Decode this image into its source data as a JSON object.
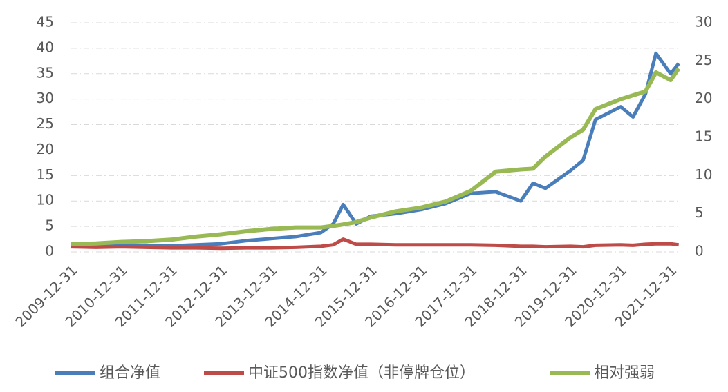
{
  "chart_data": {
    "type": "line",
    "x": [
      "2009-12-31",
      "2010-06-30",
      "2010-12-31",
      "2011-06-30",
      "2011-12-31",
      "2012-06-30",
      "2012-12-31",
      "2013-06-30",
      "2013-12-31",
      "2014-06-30",
      "2014-12-31",
      "2015-03-31",
      "2015-06-12",
      "2015-09-15",
      "2015-12-31",
      "2016-06-30",
      "2016-12-31",
      "2017-06-30",
      "2017-12-31",
      "2018-06-30",
      "2018-12-31",
      "2019-03-31",
      "2019-06-30",
      "2019-12-31",
      "2020-03-31",
      "2020-06-30",
      "2020-12-31",
      "2021-03-31",
      "2021-06-30",
      "2021-09-15",
      "2021-12-31",
      "2022-02-28"
    ],
    "xticks": [
      "2009-12-31",
      "2010-12-31",
      "2011-12-31",
      "2012-12-31",
      "2013-12-31",
      "2014-12-31",
      "2015-12-31",
      "2016-12-31",
      "2017-12-31",
      "2018-12-31",
      "2019-12-31",
      "2020-12-31",
      "2021-12-31"
    ],
    "series": [
      {
        "name": "组合净值",
        "color": "#4a7ebb",
        "values": [
          1.2,
          1.1,
          1.2,
          1.3,
          1.2,
          1.4,
          1.6,
          2.2,
          2.6,
          3.0,
          3.8,
          5.5,
          9.3,
          5.5,
          7.0,
          7.5,
          8.3,
          9.5,
          11.5,
          11.8,
          10.0,
          13.5,
          12.5,
          16.0,
          18.0,
          26.0,
          28.5,
          26.5,
          31.0,
          39.0,
          35.0,
          37.0
        ]
      },
      {
        "name": "中证500指数净值（非停牌仓位）",
        "color": "#be4b48",
        "values": [
          1.0,
          0.9,
          1.0,
          0.9,
          0.8,
          0.8,
          0.7,
          0.8,
          0.8,
          0.9,
          1.1,
          1.4,
          2.5,
          1.5,
          1.5,
          1.4,
          1.4,
          1.4,
          1.4,
          1.3,
          1.1,
          1.1,
          1.0,
          1.1,
          1.0,
          1.3,
          1.4,
          1.3,
          1.5,
          1.6,
          1.6,
          1.4
        ]
      },
      {
        "name": "相对强弱",
        "color": "#98b954",
        "axis": "y2",
        "values": [
          1.0,
          1.1,
          1.3,
          1.4,
          1.6,
          2.0,
          2.3,
          2.7,
          3.0,
          3.2,
          3.2,
          3.4,
          3.6,
          3.9,
          4.5,
          5.3,
          5.8,
          6.6,
          8.0,
          10.5,
          10.8,
          10.9,
          12.5,
          15.0,
          16.0,
          18.7,
          20.0,
          20.5,
          21.0,
          23.5,
          22.5,
          24.0
        ]
      }
    ],
    "ylim": [
      0,
      45
    ],
    "yticks": [
      0,
      5,
      10,
      15,
      20,
      25,
      30,
      35,
      40,
      45
    ],
    "y2lim": [
      0,
      30
    ],
    "y2ticks": [
      0,
      5,
      10,
      15,
      20,
      25,
      30
    ],
    "grid": true,
    "legend": "bottom"
  }
}
